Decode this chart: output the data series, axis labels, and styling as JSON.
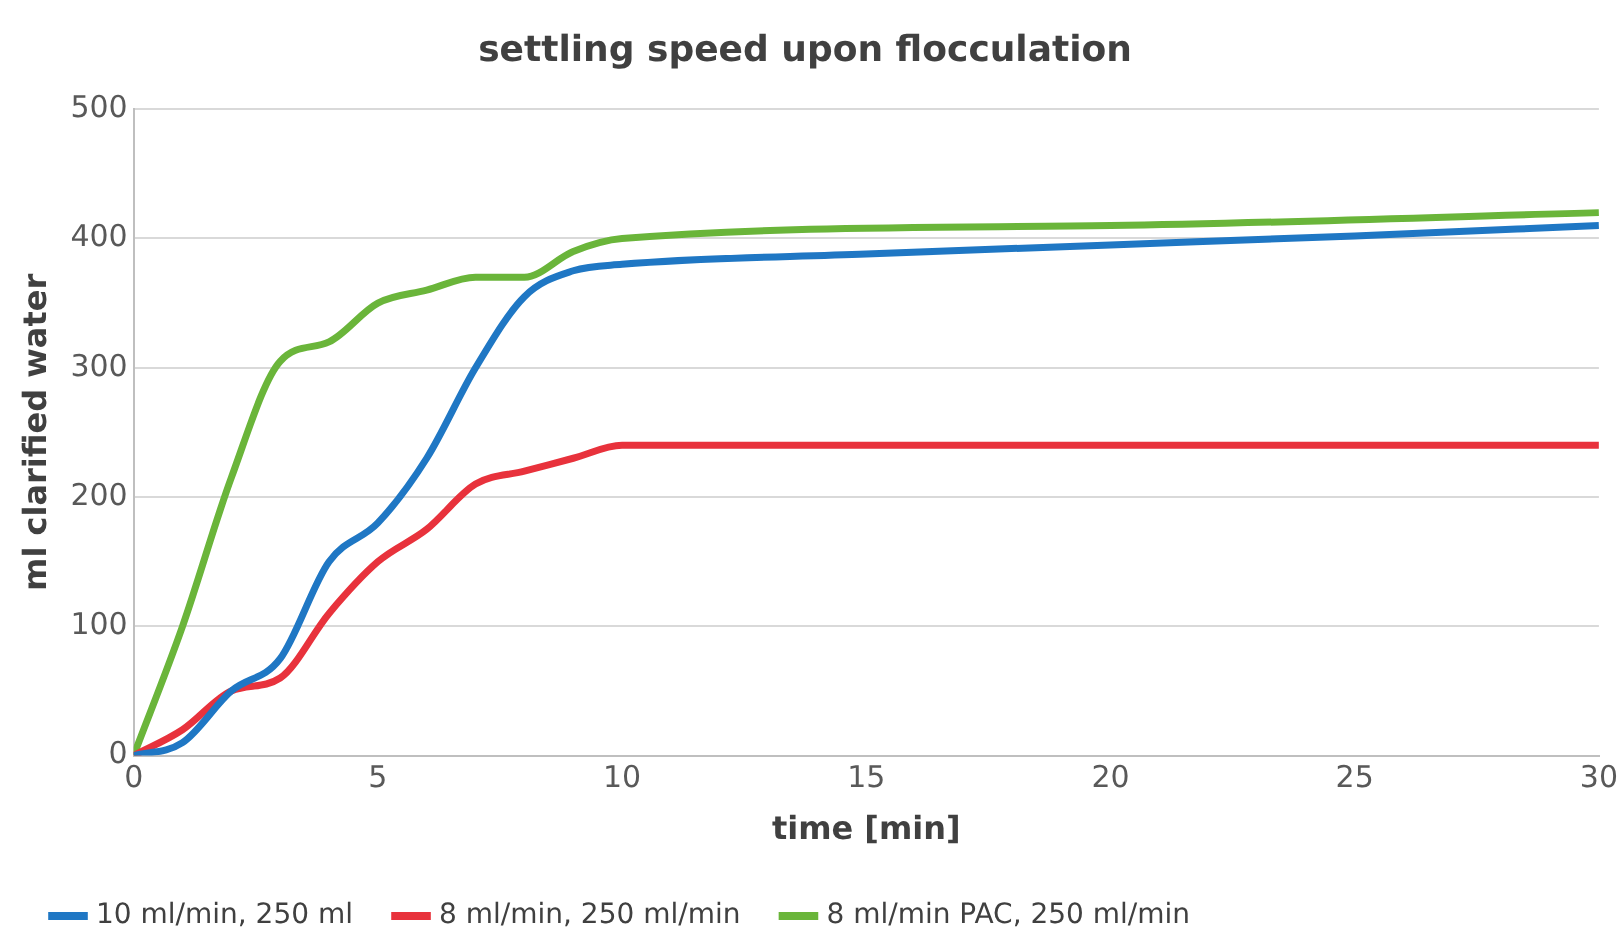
{
  "chart_data": {
    "type": "line",
    "title": "settling speed upon flocculation",
    "xlabel": "time [min]",
    "ylabel": "ml clarified water",
    "xlim": [
      0,
      30
    ],
    "xticks": [
      0,
      5,
      10,
      15,
      20,
      25,
      30
    ],
    "ylim": [
      0,
      500
    ],
    "yticks": [
      0,
      100,
      200,
      300,
      400,
      500
    ],
    "grid": "y",
    "legend": "bottom",
    "marker": "none",
    "line_style": "solid",
    "series": [
      {
        "name": "10 ml/min, 250 ml",
        "color": "#1f77c4",
        "x": [
          0,
          1,
          2,
          3,
          4,
          5,
          6,
          7,
          8,
          9,
          10,
          15,
          20,
          25,
          30
        ],
        "values": [
          0,
          10,
          50,
          75,
          150,
          180,
          230,
          300,
          355,
          375,
          380,
          388,
          395,
          402,
          410
        ]
      },
      {
        "name": "8 ml/min, 250 ml/min",
        "color": "#e8323c",
        "x": [
          0,
          1,
          2,
          3,
          4,
          5,
          6,
          7,
          8,
          9,
          10,
          20,
          30
        ],
        "values": [
          0,
          20,
          50,
          60,
          110,
          150,
          175,
          210,
          220,
          230,
          240,
          240,
          240
        ]
      },
      {
        "name": "8 ml/min PAC, 250 ml/min",
        "color": "#6ab53a",
        "x": [
          0,
          1,
          2,
          3,
          4,
          5,
          6,
          7,
          8,
          9,
          10,
          20,
          30
        ],
        "values": [
          0,
          100,
          215,
          305,
          320,
          350,
          360,
          370,
          370,
          390,
          400,
          410,
          420
        ]
      }
    ]
  }
}
